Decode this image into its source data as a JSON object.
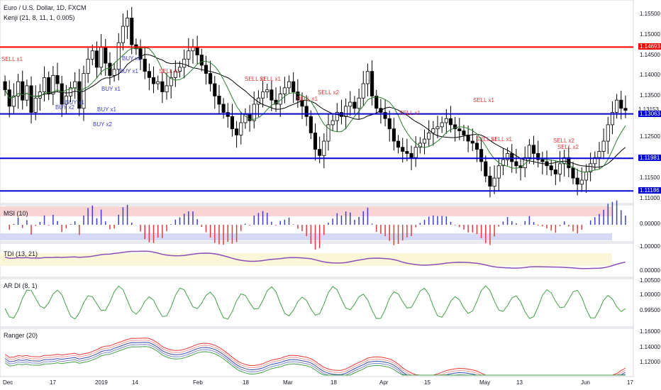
{
  "header": {
    "symbol_line": "Euro / U.S. Dollar, 1D, FXCM",
    "indicator_line": "Kenji (21, 8, 11, 1, 0.005)"
  },
  "colors": {
    "up_candle": "#ffffff",
    "down_candle": "#000000",
    "resistance": "#ff0000",
    "support": "#0000d6",
    "sell": "#e03c3c",
    "buy": "#3c3cd6",
    "ma_green": "#2e7d32",
    "ma_black": "#000000"
  },
  "panes": {
    "msi": "MSI (10)",
    "tdi": "TDI (13, 21)",
    "ardi": "AR DI (8, 1)",
    "ranger": "Ranger (20)"
  },
  "xaxis": {
    "labels": [
      "Dec",
      "17",
      "2019",
      "14",
      "Feb",
      "18",
      "Mar",
      "18",
      "Apr",
      "15",
      "May",
      "13",
      "Jun",
      "17"
    ]
  },
  "main_scale": {
    "ticks": [
      "1.15500",
      "1.15000",
      "1.14500",
      "1.14000",
      "1.13500",
      "1.12500",
      "1.12000",
      "1.11500",
      "1.11000"
    ],
    "highlighted": [
      {
        "text": "1.14693",
        "color": "#ff0000"
      },
      {
        "text": "1.13153",
        "color": "none"
      },
      {
        "text": "1.13063",
        "color": "#0000d6"
      },
      {
        "text": "1.11981",
        "color": "#0000d6"
      },
      {
        "text": "1.11186",
        "color": "#0000d6"
      }
    ]
  },
  "sub_scales": {
    "msi": [
      "0.00000"
    ],
    "tdi": [
      "1.00000",
      "0.00000"
    ],
    "ardi": [
      "1.00500",
      "1.00000",
      "0.99500"
    ],
    "ranger": [
      "1.16000",
      "1.14000",
      "1.12000"
    ]
  },
  "signals": {
    "sell": [
      "SELL x1",
      "SELL x1",
      "SELL x1",
      "SELL x1",
      "SELL x1",
      "SELL x2",
      "SELL x1",
      "SELL x1",
      "SELL x1",
      "SELL x1",
      "SELL x2",
      "SELL x2"
    ],
    "buy": [
      "BUY x1",
      "BUY x1",
      "BUY x1",
      "BUY x1",
      "BUY x2",
      "BUY x1",
      "BUY x2"
    ]
  },
  "chart_data": {
    "type": "candlestick",
    "title": "Euro / U.S. Dollar, 1D, FXCM",
    "ylim": [
      1.1088,
      1.1584
    ],
    "horizontal_levels": [
      {
        "value": 1.14693,
        "kind": "resistance"
      },
      {
        "value": 1.13063,
        "kind": "support"
      },
      {
        "value": 1.11981,
        "kind": "support"
      },
      {
        "value": 1.11186,
        "kind": "support"
      }
    ],
    "last_price": 1.13153,
    "close_series": [
      1.1365,
      1.1325,
      1.135,
      1.1385,
      1.134,
      1.1375,
      1.131,
      1.1345,
      1.136,
      1.1395,
      1.1355,
      1.14,
      1.138,
      1.133,
      1.135,
      1.137,
      1.1385,
      1.132,
      1.1405,
      1.144,
      1.146,
      1.142,
      1.147,
      1.143,
      1.14,
      1.1415,
      1.148,
      1.152,
      1.154,
      1.1475,
      1.1465,
      1.144,
      1.141,
      1.1395,
      1.138,
      1.1385,
      1.136,
      1.1375,
      1.1395,
      1.141,
      1.142,
      1.144,
      1.146,
      1.147,
      1.145,
      1.1425,
      1.1405,
      1.138,
      1.135,
      1.133,
      1.131,
      1.13,
      1.127,
      1.1255,
      1.1285,
      1.1305,
      1.129,
      1.133,
      1.1345,
      1.136,
      1.1365,
      1.134,
      1.133,
      1.1355,
      1.137,
      1.1385,
      1.136,
      1.134,
      1.1325,
      1.13,
      1.126,
      1.122,
      1.1205,
      1.124,
      1.128,
      1.129,
      1.131,
      1.13,
      1.1325,
      1.1335,
      1.132,
      1.1345,
      1.138,
      1.141,
      1.135,
      1.132,
      1.131,
      1.1295,
      1.127,
      1.124,
      1.1225,
      1.1215,
      1.121,
      1.12,
      1.1225,
      1.1235,
      1.1245,
      1.126,
      1.127,
      1.1275,
      1.1285,
      1.1295,
      1.128,
      1.127,
      1.1265,
      1.1255,
      1.124,
      1.1235,
      1.122,
      1.119,
      1.1155,
      1.113,
      1.115,
      1.118,
      1.1195,
      1.121,
      1.119,
      1.118,
      1.1175,
      1.12,
      1.123,
      1.121,
      1.1195,
      1.119,
      1.118,
      1.117,
      1.116,
      1.1185,
      1.12,
      1.1175,
      1.115,
      1.1135,
      1.1145,
      1.1165,
      1.1185,
      1.12,
      1.1215,
      1.124,
      1.128,
      1.131,
      1.134,
      1.132,
      1.1315
    ],
    "x_labels": [
      "Dec",
      "17",
      "2019",
      "14",
      "Feb",
      "18",
      "Mar",
      "18",
      "Apr",
      "15",
      "May",
      "13",
      "Jun",
      "17"
    ],
    "indicators": [
      "Kenji (21, 8, 11, 1, 0.005)",
      "MSI (10)",
      "TDI (13, 21)",
      "AR DI (8, 1)",
      "Ranger (20)"
    ]
  }
}
